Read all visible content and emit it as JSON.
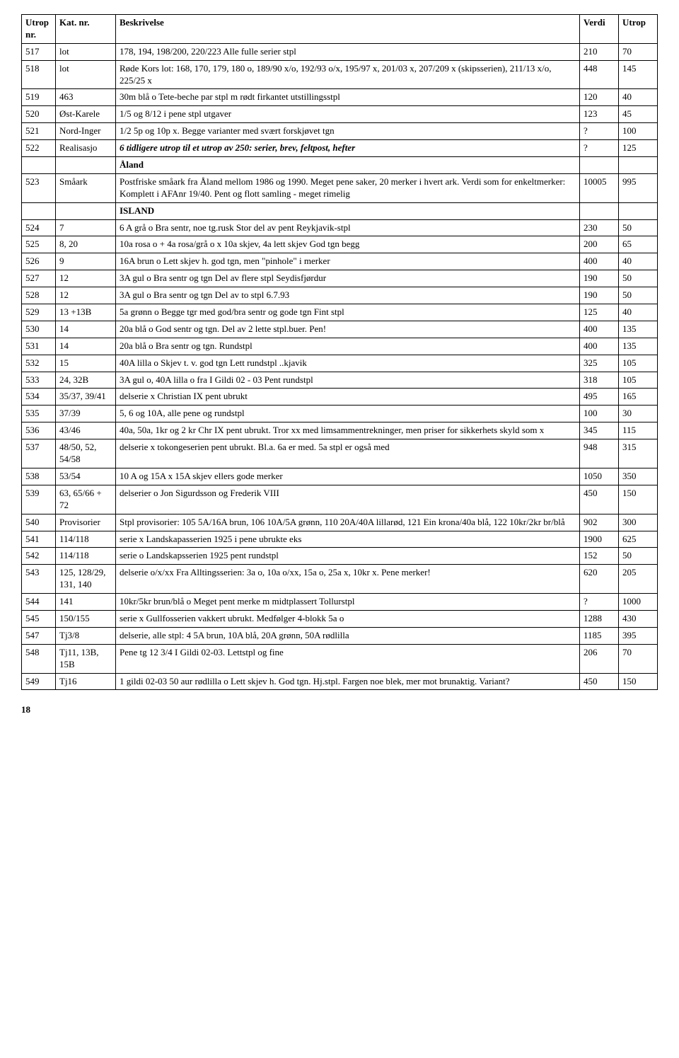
{
  "headers": {
    "utrop_nr": "Utrop nr.",
    "kat_nr": "Kat. nr.",
    "beskrivelse": "Beskrivelse",
    "verdi": "Verdi",
    "utrop": "Utrop"
  },
  "rows": [
    {
      "n": "517",
      "k": "lot",
      "d": "178, 194, 198/200, 220/223 Alle fulle serier stpl",
      "v": "210",
      "u": "70"
    },
    {
      "n": "518",
      "k": "lot",
      "d": "Røde Kors lot: 168, 170, 179, 180 o, 189/90 x/o, 192/93 o/x, 195/97 x, 201/03 x, 207/209 x (skipsserien), 211/13 x/o, 225/25 x",
      "v": "448",
      "u": "145"
    },
    {
      "n": "519",
      "k": "463",
      "d": "30m blå o Tete-beche par stpl m rødt firkantet utstillingsstpl",
      "v": "120",
      "u": "40"
    },
    {
      "n": "520",
      "k": "Øst-Karele",
      "d": "1/5 og 8/12 i pene stpl utgaver",
      "v": "123",
      "u": "45"
    },
    {
      "n": "521",
      "k": "Nord-Inger",
      "d": "1/2  5p og 10p x. Begge varianter med svært forskjøvet tgn",
      "v": "?",
      "u": "100"
    },
    {
      "n": "522",
      "k": "Realisasjo",
      "d": "6 tidligere utrop til et utrop av 250: serier, brev, feltpost, hefter",
      "v": "?",
      "u": "125",
      "bolditalic": true
    },
    {
      "n": "",
      "k": "",
      "d": "Åland",
      "v": "",
      "u": "",
      "section": true
    },
    {
      "n": "523",
      "k": "Småark",
      "d": "Postfriske småark fra Åland mellom 1986 og 1990. Meget pene saker, 20 merker i hvert ark. Verdi som for enkeltmerker: Komplett i AFAnr 19/40. Pent og flott samling - meget rimelig",
      "v": "10005",
      "u": "995"
    },
    {
      "n": "",
      "k": "",
      "d": "ISLAND",
      "v": "",
      "u": "",
      "section": true
    },
    {
      "n": "524",
      "k": "7",
      "d": "6 A grå o Bra sentr, noe tg.rusk Stor del av pent Reykjavik-stpl",
      "v": "230",
      "u": "50"
    },
    {
      "n": "525",
      "k": "8, 20",
      "d": "10a rosa o + 4a rosa/grå o x 10a skjev, 4a lett skjev God tgn begg",
      "v": "200",
      "u": "65"
    },
    {
      "n": "526",
      "k": "9",
      "d": "16A brun o Lett skjev h. god tgn, men \"pinhole\" i merker",
      "v": "400",
      "u": "40"
    },
    {
      "n": "527",
      "k": "12",
      "d": "3A gul o Bra sentr og tgn Del av flere stpl Seydisfjørdur",
      "v": "190",
      "u": "50"
    },
    {
      "n": "528",
      "k": "12",
      "d": "3A gul o Bra sentr og tgn Del av to stpl 6.7.93",
      "v": "190",
      "u": "50"
    },
    {
      "n": "529",
      "k": "13 +13B",
      "d": "5a grønn o Begge tgr med god/bra sentr og gode tgn Fint stpl",
      "v": "125",
      "u": "40"
    },
    {
      "n": "530",
      "k": "14",
      "d": "20a blå o God sentr og tgn. Del av 2 lette stpl.buer. Pen!",
      "v": "400",
      "u": "135"
    },
    {
      "n": "531",
      "k": "14",
      "d": "20a blå o Bra sentr og tgn. Rundstpl",
      "v": "400",
      "u": "135"
    },
    {
      "n": "532",
      "k": "15",
      "d": "40A lilla o Skjev t. v. god tgn Lett rundstpl ..kjavik",
      "v": "325",
      "u": "105"
    },
    {
      "n": "533",
      "k": "24, 32B",
      "d": "3A gul o, 40A lilla o fra I Gildi 02 - 03 Pent rundstpl",
      "v": "318",
      "u": "105"
    },
    {
      "n": "534",
      "k": "35/37, 39/41",
      "d": "delserie x Christian IX pent ubrukt",
      "v": "495",
      "u": "165"
    },
    {
      "n": "535",
      "k": "37/39",
      "d": "5, 6 og 10A, alle pene og rundstpl",
      "v": "100",
      "u": "30"
    },
    {
      "n": "536",
      "k": "43/46",
      "d": "40a, 50a, 1kr og 2 kr Chr IX pent ubrukt. Tror xx med limsammentrekninger, men priser for sikkerhets skyld som x",
      "v": "345",
      "u": "115"
    },
    {
      "n": "537",
      "k": "48/50, 52, 54/58",
      "d": "delserie x tokongeserien pent ubrukt. Bl.a. 6a er med. 5a stpl er også med",
      "v": "948",
      "u": "315"
    },
    {
      "n": "538",
      "k": "53/54",
      "d": "10 A og 15A x 15A skjev ellers gode merker",
      "v": "1050",
      "u": "350"
    },
    {
      "n": "539",
      "k": "63, 65/66 + 72",
      "d": "delserier o Jon Sigurdsson og Frederik VIII",
      "v": "450",
      "u": "150"
    },
    {
      "n": "540",
      "k": "Provisorier",
      "d": "Stpl provisorier: 105 5A/16A brun, 106 10A/5A grønn, 110 20A/40A lillarød, 121 Ein krona/40a blå, 122 10kr/2kr br/blå",
      "v": "902",
      "u": "300"
    },
    {
      "n": "541",
      "k": "114/118",
      "d": "serie x Landskapasserien 1925 i pene ubrukte eks",
      "v": "1900",
      "u": "625"
    },
    {
      "n": "542",
      "k": "114/118",
      "d": "serie o Landskapsserien 1925 pent rundstpl",
      "v": "152",
      "u": "50"
    },
    {
      "n": "543",
      "k": "125, 128/29, 131, 140",
      "d": "delserie o/x/xx Fra Alltingsserien: 3a o, 10a o/xx, 15a o, 25a x, 10kr x. Pene merker!",
      "v": "620",
      "u": "205"
    },
    {
      "n": "544",
      "k": "141",
      "d": "10kr/5kr brun/blå o Meget pent merke m midtplassert Tollurstpl",
      "v": "?",
      "u": "1000"
    },
    {
      "n": "545",
      "k": "150/155",
      "d": "serie x Gullfosserien vakkert ubrukt. Medfølger 4-blokk 5a o",
      "v": "1288",
      "u": "430"
    },
    {
      "n": "547",
      "k": "Tj3/8",
      "d": "delserie, alle stpl: 4 5A brun, 10A blå, 20A grønn, 50A rødlilla",
      "v": "1185",
      "u": "395"
    },
    {
      "n": "548",
      "k": "Tj11, 13B, 15B",
      "d": "Pene tg 12 3/4 I Gildi 02-03. Lettstpl og fine",
      "v": "206",
      "u": "70"
    },
    {
      "n": "549",
      "k": "Tj16",
      "d": "1 gildi 02-03 50 aur rødlilla o Lett skjev h. God tgn. Hj.stpl. Fargen noe blek, mer mot brunaktig. Variant?",
      "v": "450",
      "u": "150"
    }
  ],
  "page_number": "18"
}
